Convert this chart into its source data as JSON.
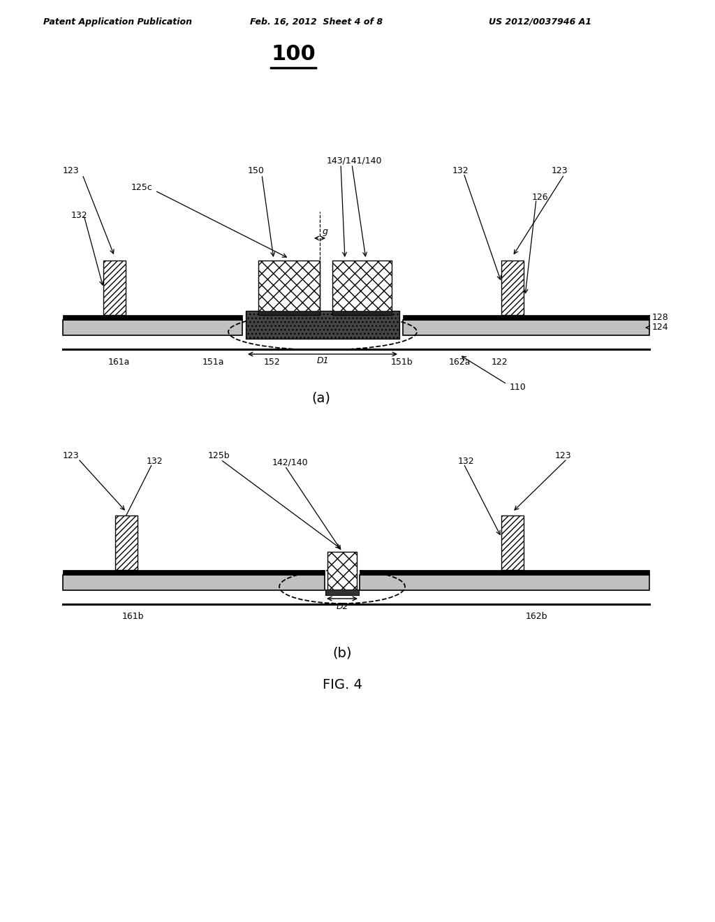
{
  "bg_color": "#ffffff",
  "title": "100",
  "fig_label_a": "(a)",
  "fig_label_b": "(b)",
  "fig_label_main": "FIG. 4",
  "header_left": "Patent Application Publication",
  "header_mid": "Feb. 16, 2012  Sheet 4 of 8",
  "header_right": "US 2012/0037946 A1",
  "gray_layer_color": "#c0c0c0",
  "dark_block_color": "#444444",
  "pillar_hatch": "////",
  "cross_hatch": "xx"
}
